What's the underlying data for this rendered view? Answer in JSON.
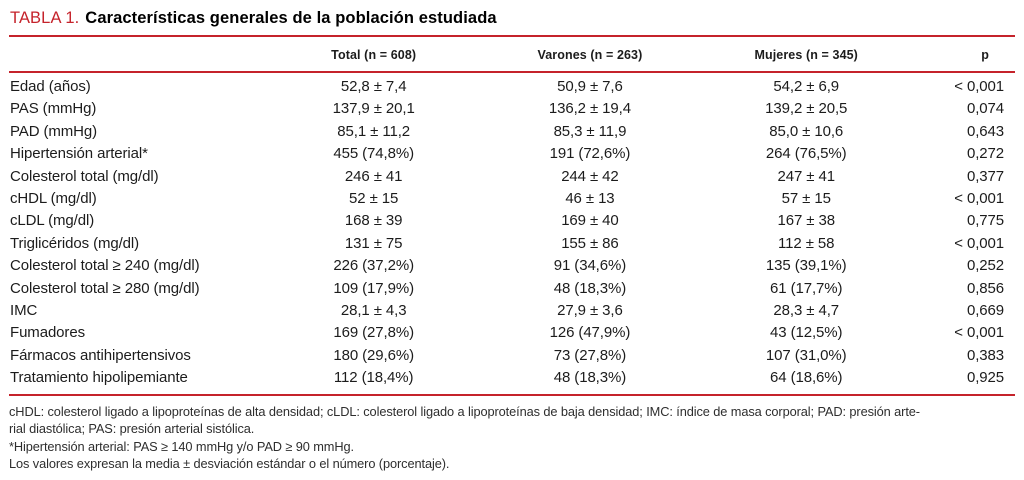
{
  "colors": {
    "accent_red": "#c5232b",
    "text": "#1c1c1c"
  },
  "title": {
    "label": "TABLA 1.",
    "text": "Características generales de la población estudiada"
  },
  "table": {
    "headers": {
      "label": "",
      "total": "Total (n = 608)",
      "varones": "Varones (n = 263)",
      "mujeres": "Mujeres (n = 345)",
      "p": "p"
    },
    "rows": [
      {
        "label": "Edad (años)",
        "total": "52,8 ± 7,4",
        "varones": "50,9 ± 7,6",
        "mujeres": "54,2 ± 6,9",
        "p": "< 0,001"
      },
      {
        "label": "PAS (mmHg)",
        "total": "137,9 ± 20,1",
        "varones": "136,2 ± 19,4",
        "mujeres": "139,2 ± 20,5",
        "p": "0,074"
      },
      {
        "label": "PAD (mmHg)",
        "total": "85,1 ± 11,2",
        "varones": "85,3 ± 11,9",
        "mujeres": "85,0 ± 10,6",
        "p": "0,643"
      },
      {
        "label": "Hipertensión arterial*",
        "total": "455 (74,8%)",
        "varones": "191 (72,6%)",
        "mujeres": "264 (76,5%)",
        "p": "0,272"
      },
      {
        "label": "Colesterol total (mg/dl)",
        "total": "246 ± 41",
        "varones": "244 ± 42",
        "mujeres": "247 ± 41",
        "p": "0,377"
      },
      {
        "label": "cHDL (mg/dl)",
        "total": "52 ± 15",
        "varones": "46 ± 13",
        "mujeres": "57 ± 15",
        "p": "< 0,001"
      },
      {
        "label": "cLDL (mg/dl)",
        "total": "168 ± 39",
        "varones": "169 ± 40",
        "mujeres": "167 ± 38",
        "p": "0,775"
      },
      {
        "label": "Triglicéridos (mg/dl)",
        "total": "131 ± 75",
        "varones": "155 ± 86",
        "mujeres": "112 ± 58",
        "p": "< 0,001"
      },
      {
        "label": "Colesterol total ≥ 240 (mg/dl)",
        "total": "226 (37,2%)",
        "varones": "91 (34,6%)",
        "mujeres": "135 (39,1%)",
        "p": "0,252"
      },
      {
        "label": "Colesterol total ≥ 280 (mg/dl)",
        "total": "109 (17,9%)",
        "varones": "48 (18,3%)",
        "mujeres": "61 (17,7%)",
        "p": "0,856"
      },
      {
        "label": "IMC",
        "total": "28,1 ± 4,3",
        "varones": "27,9 ± 3,6",
        "mujeres": "28,3 ± 4,7",
        "p": "0,669"
      },
      {
        "label": "Fumadores",
        "total": "169 (27,8%)",
        "varones": "126 (47,9%)",
        "mujeres": "43 (12,5%)",
        "p": "< 0,001"
      },
      {
        "label": "Fármacos antihipertensivos",
        "total": "180 (29,6%)",
        "varones": "73 (27,8%)",
        "mujeres": "107 (31,0%)",
        "p": "0,383"
      },
      {
        "label": "Tratamiento hipolipemiante",
        "total": "112 (18,4%)",
        "varones": "48 (18,3%)",
        "mujeres": "64 (18,6%)",
        "p": "0,925"
      }
    ]
  },
  "footnotes": {
    "lines": [
      "cHDL: colesterol ligado a lipoproteínas de alta densidad; cLDL: colesterol ligado a lipoproteínas de baja densidad; IMC: índice de masa corporal; PAD: presión arte-",
      "rial diastólica; PAS: presión arterial sistólica.",
      "*Hipertensión arterial: PAS ≥ 140 mmHg y/o PAD ≥ 90 mmHg.",
      "Los valores expresan la media ± desviación estándar o el número (porcentaje)."
    ]
  }
}
